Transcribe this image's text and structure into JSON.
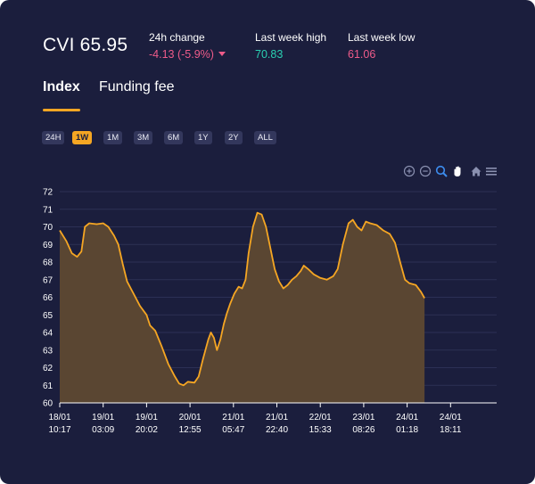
{
  "header": {
    "title": "CVI 65.95",
    "change_label": "24h change",
    "change_value": "-4.13 (-5.9%)",
    "high_label": "Last week high",
    "high_value": "70.83",
    "low_label": "Last week low",
    "low_value": "61.06"
  },
  "tabs": [
    {
      "label": "Index",
      "active": true
    },
    {
      "label": "Funding fee",
      "active": false
    }
  ],
  "ranges": [
    {
      "label": "24H",
      "selected": false
    },
    {
      "label": "1W",
      "selected": true
    },
    {
      "label": "1M",
      "selected": false
    },
    {
      "label": "3M",
      "selected": false
    },
    {
      "label": "6M",
      "selected": false
    },
    {
      "label": "1Y",
      "selected": false
    },
    {
      "label": "2Y",
      "selected": false
    },
    {
      "label": "ALL",
      "selected": false
    }
  ],
  "toolbar": [
    "zoom-in-icon",
    "zoom-out-icon",
    "zoom-select-icon",
    "pan-hand-icon",
    "home-icon",
    "menu-icon"
  ],
  "colors": {
    "background": "#1b1e3d",
    "accent": "#f5a623",
    "negative": "#ef5b8a",
    "positive": "#2ad0b2",
    "area_fill": "#5a4632"
  },
  "chart_data": {
    "type": "area",
    "title": "",
    "xlabel": "",
    "ylabel": "",
    "ylim": [
      60,
      72
    ],
    "yticks": [
      60,
      61,
      62,
      63,
      64,
      65,
      66,
      67,
      68,
      69,
      70,
      71,
      72
    ],
    "xticks": [
      [
        "18/01",
        "10:17"
      ],
      [
        "19/01",
        "03:09"
      ],
      [
        "19/01",
        "20:02"
      ],
      [
        "20/01",
        "12:55"
      ],
      [
        "21/01",
        "05:47"
      ],
      [
        "21/01",
        "22:40"
      ],
      [
        "22/01",
        "15:33"
      ],
      [
        "23/01",
        "08:26"
      ],
      [
        "24/01",
        "01:18"
      ],
      [
        "24/01",
        "18:11"
      ]
    ],
    "grid": true,
    "series": [
      {
        "values": [
          [
            0,
            69.8
          ],
          [
            0.15,
            69.2
          ],
          [
            0.28,
            68.5
          ],
          [
            0.4,
            68.3
          ],
          [
            0.5,
            68.6
          ],
          [
            0.58,
            70.0
          ],
          [
            0.68,
            70.2
          ],
          [
            0.85,
            70.15
          ],
          [
            1.0,
            70.2
          ],
          [
            1.12,
            70.0
          ],
          [
            1.25,
            69.5
          ],
          [
            1.35,
            69.0
          ],
          [
            1.45,
            67.9
          ],
          [
            1.55,
            66.9
          ],
          [
            1.7,
            66.2
          ],
          [
            1.85,
            65.5
          ],
          [
            2.0,
            65.0
          ],
          [
            2.08,
            64.4
          ],
          [
            2.2,
            64.1
          ],
          [
            2.35,
            63.2
          ],
          [
            2.5,
            62.2
          ],
          [
            2.65,
            61.5
          ],
          [
            2.75,
            61.1
          ],
          [
            2.85,
            61.0
          ],
          [
            2.95,
            61.2
          ],
          [
            3.1,
            61.15
          ],
          [
            3.2,
            61.5
          ],
          [
            3.3,
            62.5
          ],
          [
            3.42,
            63.6
          ],
          [
            3.48,
            64.0
          ],
          [
            3.55,
            63.7
          ],
          [
            3.62,
            63.0
          ],
          [
            3.7,
            63.6
          ],
          [
            3.78,
            64.5
          ],
          [
            3.85,
            65.1
          ],
          [
            3.92,
            65.6
          ],
          [
            4.02,
            66.2
          ],
          [
            4.12,
            66.6
          ],
          [
            4.2,
            66.5
          ],
          [
            4.28,
            67.0
          ],
          [
            4.35,
            68.5
          ],
          [
            4.45,
            70.0
          ],
          [
            4.55,
            70.8
          ],
          [
            4.65,
            70.7
          ],
          [
            4.75,
            70.0
          ],
          [
            4.85,
            68.8
          ],
          [
            4.95,
            67.6
          ],
          [
            5.05,
            66.9
          ],
          [
            5.15,
            66.5
          ],
          [
            5.25,
            66.7
          ],
          [
            5.35,
            67.0
          ],
          [
            5.45,
            67.2
          ],
          [
            5.55,
            67.5
          ],
          [
            5.62,
            67.8
          ],
          [
            5.72,
            67.6
          ],
          [
            5.85,
            67.3
          ],
          [
            6.0,
            67.1
          ],
          [
            6.15,
            67.0
          ],
          [
            6.3,
            67.2
          ],
          [
            6.4,
            67.6
          ],
          [
            6.52,
            69.0
          ],
          [
            6.65,
            70.2
          ],
          [
            6.75,
            70.4
          ],
          [
            6.85,
            70.0
          ],
          [
            6.95,
            69.8
          ],
          [
            7.05,
            70.3
          ],
          [
            7.15,
            70.2
          ],
          [
            7.3,
            70.1
          ],
          [
            7.45,
            69.8
          ],
          [
            7.6,
            69.6
          ],
          [
            7.72,
            69.1
          ],
          [
            7.85,
            67.9
          ],
          [
            7.95,
            67.0
          ],
          [
            8.05,
            66.8
          ],
          [
            8.2,
            66.7
          ],
          [
            8.32,
            66.3
          ],
          [
            8.4,
            65.95
          ]
        ]
      }
    ]
  }
}
